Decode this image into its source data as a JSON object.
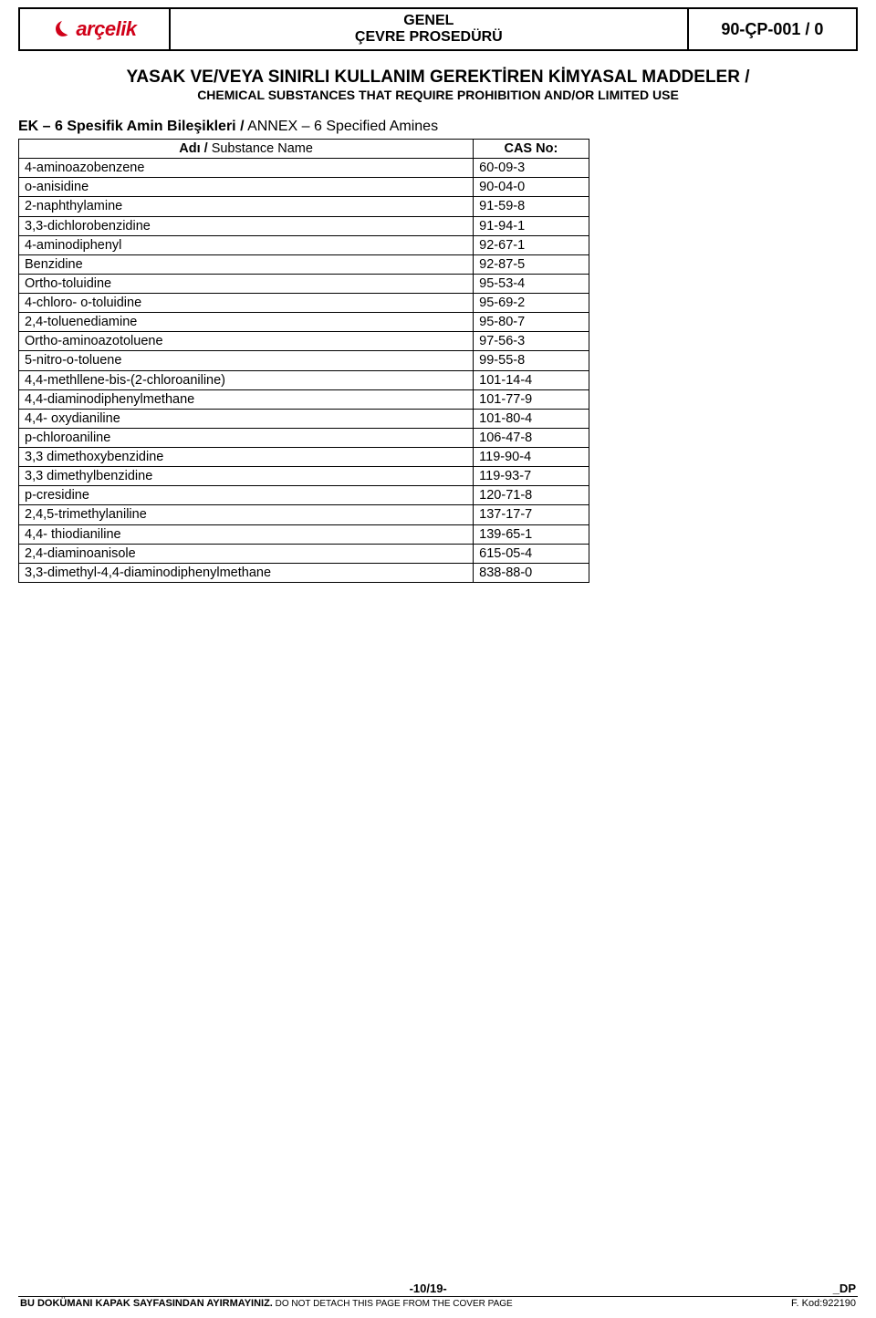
{
  "header": {
    "brand": "arçelik",
    "center_line1": "GENEL",
    "center_line2": "ÇEVRE PROSEDÜRÜ",
    "doc_no": "90-ÇP-001 / 0",
    "logo_color": "#d00018"
  },
  "title": {
    "tr": "YASAK VE/VEYA SINIRLI KULLANIM GEREKTİREN KİMYASAL MADDELER",
    "slash": " / ",
    "en": "CHEMICAL SUBSTANCES THAT REQUIRE PROHIBITION AND/OR LIMITED USE"
  },
  "annex": {
    "prefix": "EK – 6  Spesifik Amin Bileşikleri /",
    "suffix": " ANNEX – 6  Specified Amines"
  },
  "table": {
    "headers": {
      "name_bold": "Adı / ",
      "name_light": "Substance Name",
      "cas": "CAS No:"
    },
    "rows": [
      {
        "name": "4-aminoazobenzene",
        "cas": "60-09-3"
      },
      {
        "name": "o-anisidine",
        "cas": "90-04-0"
      },
      {
        "name": "2-naphthylamine",
        "cas": "91-59-8"
      },
      {
        "name": "3,3-dichlorobenzidine",
        "cas": "91-94-1"
      },
      {
        "name": "4-aminodiphenyl",
        "cas": "92-67-1"
      },
      {
        "name": "Benzidine",
        "cas": "92-87-5"
      },
      {
        "name": "Ortho-toluidine",
        "cas": "95-53-4"
      },
      {
        "name": "4-chloro- o-toluidine",
        "cas": "95-69-2"
      },
      {
        "name": "2,4-toluenediamine",
        "cas": "95-80-7"
      },
      {
        "name": "Ortho-aminoazotoluene",
        "cas": "97-56-3"
      },
      {
        "name": "5-nitro-o-toluene",
        "cas": "99-55-8"
      },
      {
        "name": "4,4-methllene-bis-(2-chloroaniline)",
        "cas": "101-14-4"
      },
      {
        "name": "4,4-diaminodiphenylmethane",
        "cas": "101-77-9"
      },
      {
        "name": "4,4- oxydianiline",
        "cas": "101-80-4"
      },
      {
        "name": "p-chloroaniline",
        "cas": "106-47-8"
      },
      {
        "name": "3,3 dimethoxybenzidine",
        "cas": "119-90-4"
      },
      {
        "name": "3,3 dimethylbenzidine",
        "cas": "119-93-7"
      },
      {
        "name": "p-cresidine",
        "cas": "120-71-8"
      },
      {
        "name": "2,4,5-trimethylaniline",
        "cas": "137-17-7"
      },
      {
        "name": "4,4- thiodianiline",
        "cas": "139-65-1"
      },
      {
        "name": "2,4-diaminoanisole",
        "cas": "615-05-4"
      },
      {
        "name": "3,3-dimethyl-4,4-diaminodiphenylmethane",
        "cas": "838-88-0"
      }
    ]
  },
  "footer": {
    "page": "-10/19-",
    "dp": "_DP",
    "warn_bold": "BU DOKÜMANI KAPAK SAYFASINDAN AYIRMAYINIZ.",
    "warn_light": " DO NOT DETACH THIS PAGE FROM THE COVER PAGE",
    "code": "F. Kod:922190"
  }
}
